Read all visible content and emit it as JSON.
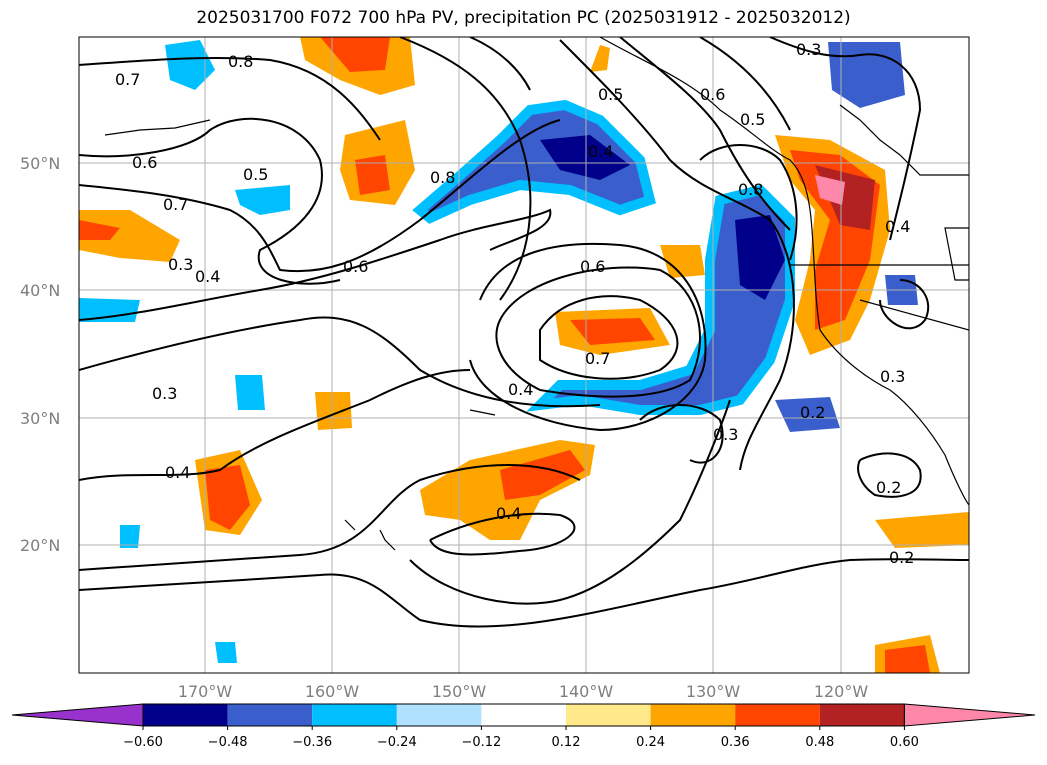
{
  "title": "2025031700 F072 700 hPa PV, precipitation PC (2025031912 - 2025032012)",
  "lat_labels": [
    "50°N",
    "40°N",
    "30°N",
    "20°N"
  ],
  "lon_labels": [
    "170°W",
    "160°W",
    "150°W",
    "140°W",
    "130°W",
    "120°W"
  ],
  "contour_labels": [
    "0.7",
    "0.8",
    "0.6",
    "0.5",
    "0.7",
    "0.3",
    "0.4",
    "0.8",
    "0.6",
    "0.4",
    "0.5",
    "0.3",
    "0.6",
    "0.5",
    "0.8",
    "0.6",
    "0.7",
    "0.3",
    "0.4",
    "0.3",
    "0.2",
    "0.4",
    "0.4",
    "0.2",
    "0.2",
    "0.3",
    "0.4"
  ],
  "colorbar": {
    "ticks": [
      "−0.60",
      "−0.48",
      "−0.36",
      "−0.24",
      "−0.12",
      "0.12",
      "0.24",
      "0.36",
      "0.48",
      "0.60"
    ],
    "colors": [
      "#9932cc",
      "#00008b",
      "#3a5fcd",
      "#00bfff",
      "#b0e2ff",
      "#ffffff",
      "#ffe98a",
      "#ffa500",
      "#ff4500",
      "#b22222",
      "#ff88aa",
      "#ff88aa"
    ]
  }
}
